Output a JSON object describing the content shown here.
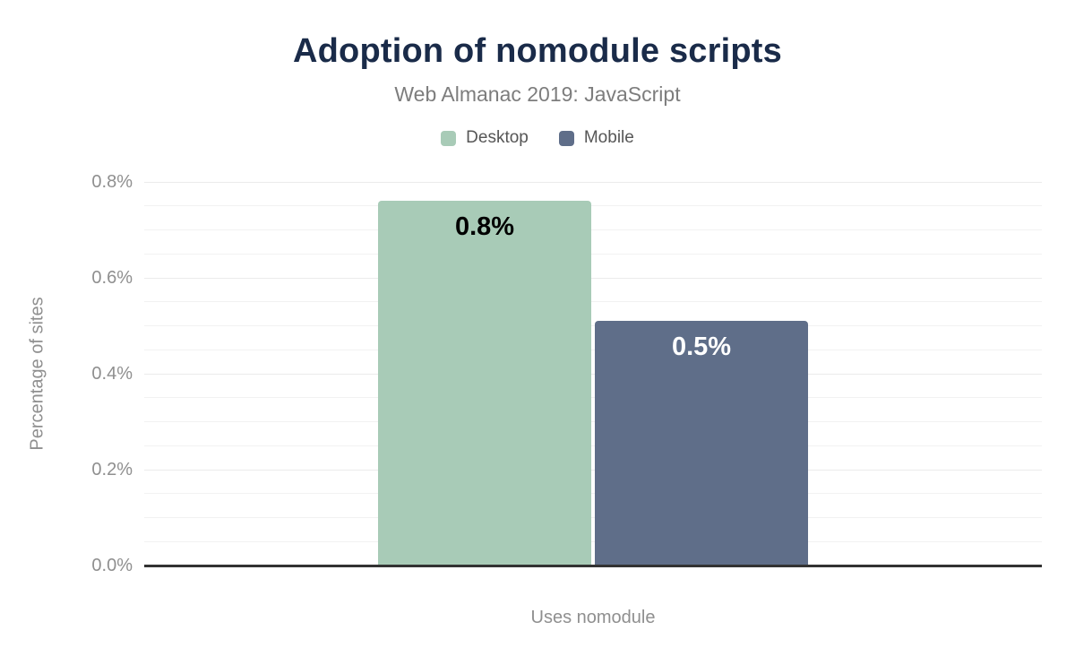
{
  "header": {
    "title": "Adoption of nomodule scripts",
    "subtitle": "Web Almanac 2019: JavaScript"
  },
  "chart_data": {
    "type": "bar",
    "title": "Adoption of nomodule scripts",
    "subtitle": "Web Almanac 2019: JavaScript",
    "categories": [
      "Uses nomodule"
    ],
    "series": [
      {
        "name": "Desktop",
        "color": "#a8cbb7",
        "values": [
          0.76
        ],
        "data_labels": [
          "0.8%"
        ],
        "label_color": "#000000"
      },
      {
        "name": "Mobile",
        "color": "#5f6e89",
        "values": [
          0.51
        ],
        "data_labels": [
          "0.5%"
        ],
        "label_color": "#ffffff"
      }
    ],
    "xlabel": "Uses nomodule",
    "ylabel": "Percentage of sites",
    "ylim": [
      0,
      0.8
    ],
    "yticks": [
      0,
      0.2,
      0.4,
      0.6,
      0.8
    ],
    "ytick_labels": [
      "0.0%",
      "0.2%",
      "0.4%",
      "0.6%",
      "0.8%"
    ],
    "minor_grid_step": 0.05,
    "grid": true,
    "legend_position": "top"
  },
  "colors": {
    "title": "#1a2b49",
    "subtitle": "#7d7d7d",
    "tick_text": "#8f8f8f",
    "axis_line": "#333333",
    "gridline_minor": "#f2f2f2",
    "gridline_major": "#ebebeb",
    "desktop": "#a8cbb7",
    "mobile": "#5f6e89"
  }
}
